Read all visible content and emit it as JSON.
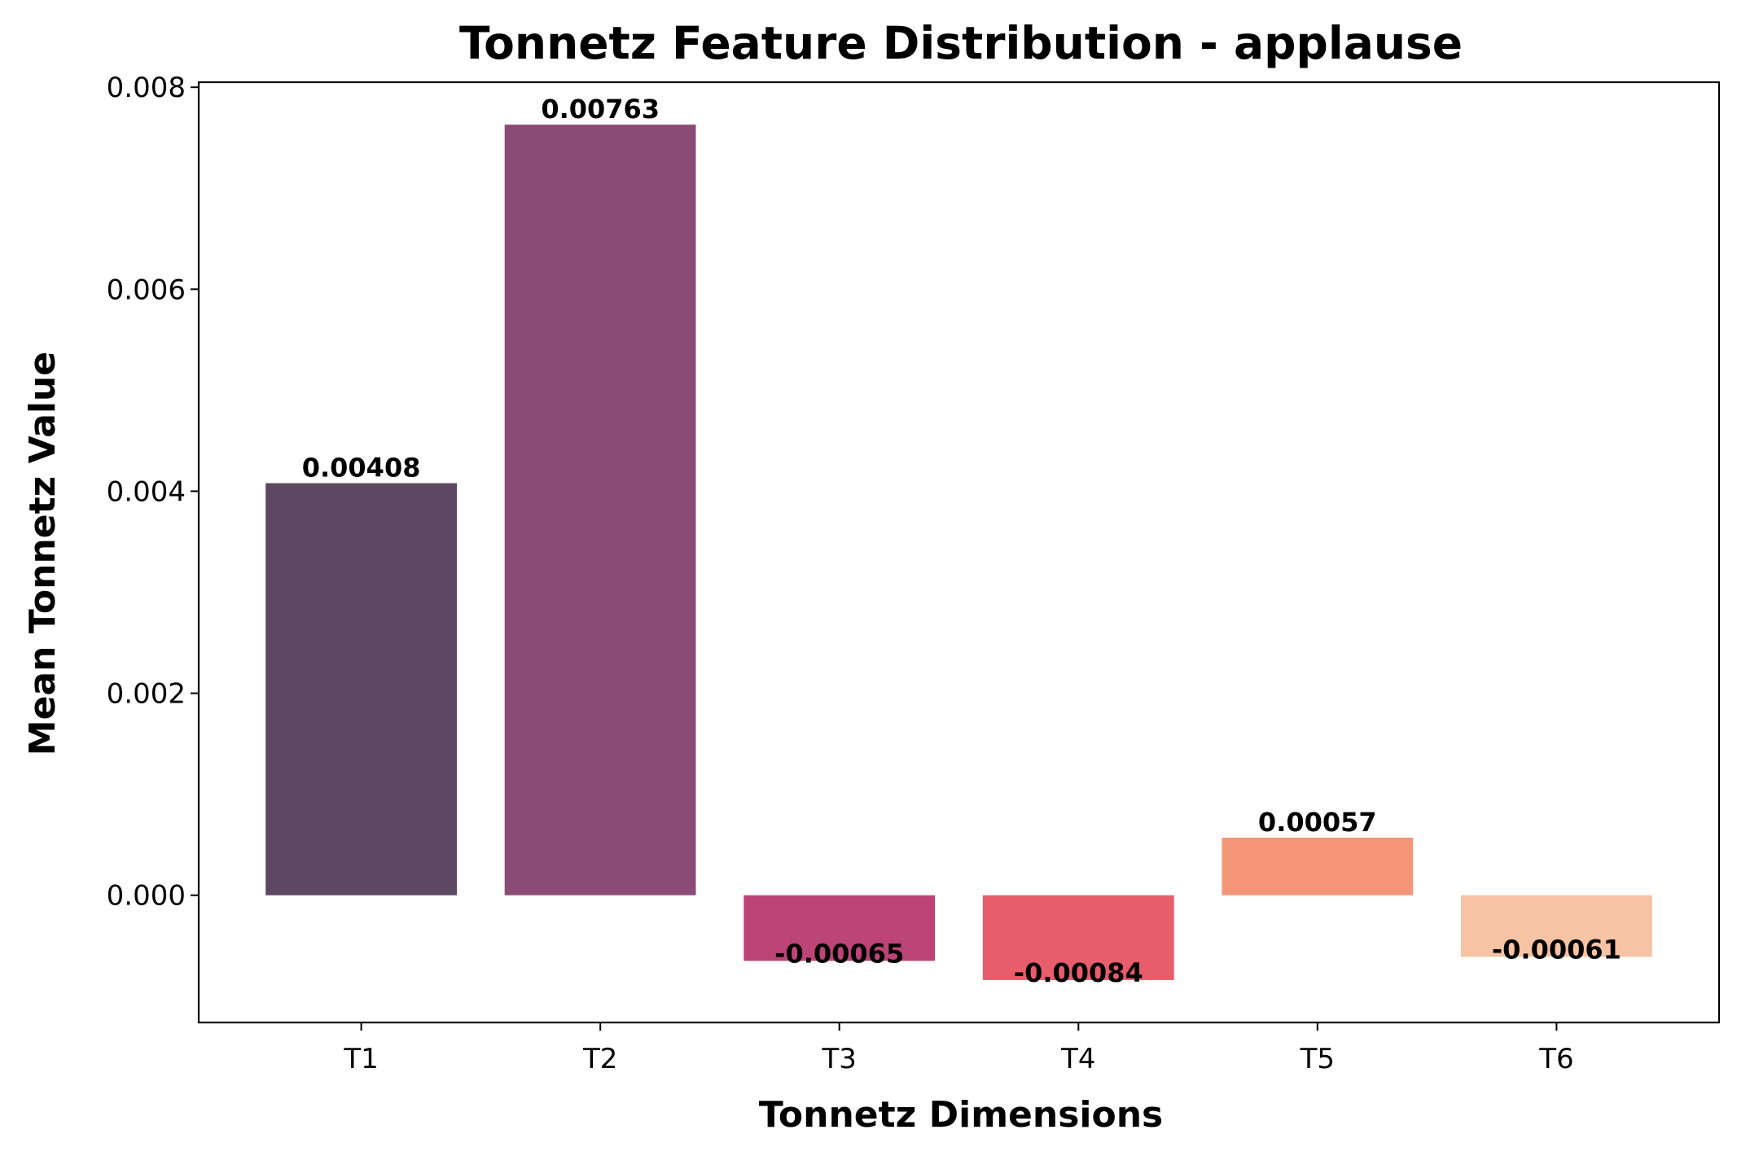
{
  "chart_data": {
    "type": "bar",
    "title": "Tonnetz Feature Distribution - applause",
    "xlabel": "Tonnetz Dimensions",
    "ylabel": "Mean Tonnetz Value",
    "categories": [
      "T1",
      "T2",
      "T3",
      "T4",
      "T5",
      "T6"
    ],
    "values": [
      0.00408,
      0.00763,
      -0.00065,
      -0.00084,
      0.00057,
      -0.00061
    ],
    "value_labels": [
      "0.00408",
      "0.00763",
      "-0.00065",
      "-0.00084",
      "0.00057",
      "-0.00061"
    ],
    "colors": [
      "#5d4763",
      "#8a4c77",
      "#bc4477",
      "#e85d6c",
      "#f49677",
      "#f6c3a4"
    ],
    "ylim": [
      -0.00126,
      0.00805
    ],
    "yticks": [
      0.0,
      0.002,
      0.004,
      0.006,
      0.008
    ],
    "ytick_labels": [
      "0.000",
      "0.002",
      "0.004",
      "0.006",
      "0.008"
    ],
    "grid": false,
    "legend": "none"
  }
}
